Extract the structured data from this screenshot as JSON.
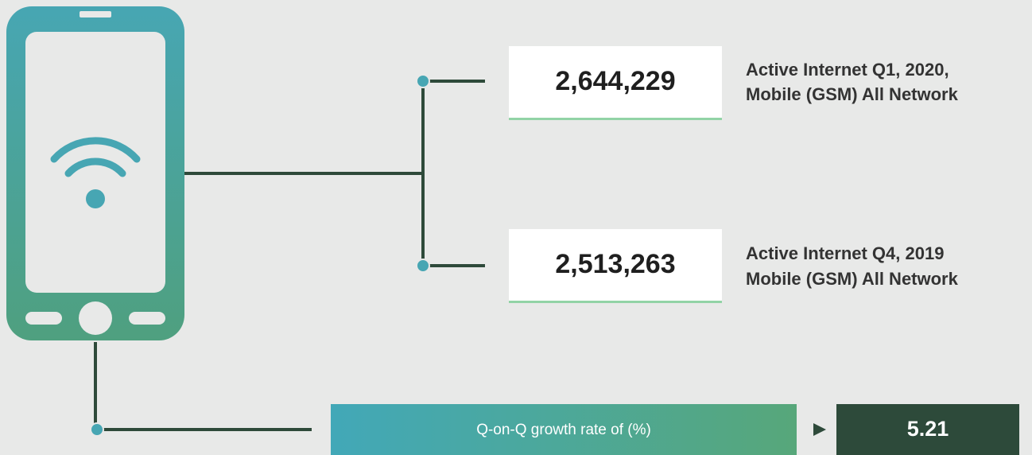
{
  "stats": [
    {
      "value": "2,644,229",
      "label": [
        "Active Internet Q1, 2020,",
        "Mobile (GSM) All Network"
      ]
    },
    {
      "value": "2,513,263",
      "label": [
        "Active Internet Q4, 2019",
        "Mobile (GSM) All Network"
      ]
    }
  ],
  "growth": {
    "label": "Q-on-Q growth rate of (%)",
    "value": "5.21"
  }
}
